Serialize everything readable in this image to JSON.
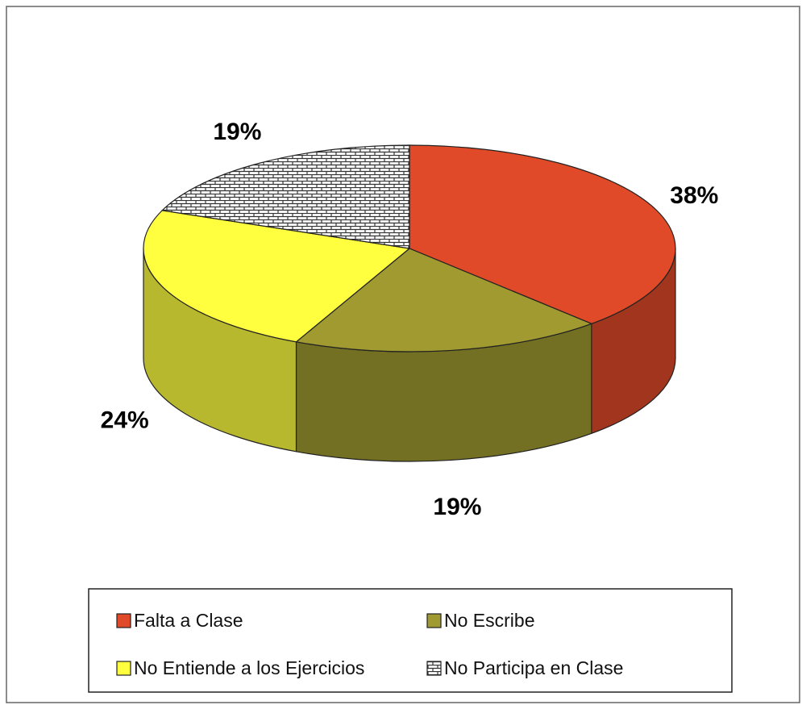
{
  "chart_data": {
    "type": "pie",
    "categories": [
      "Falta a Clase",
      "No Escribe",
      "No Entiende a los Ejercicios",
      "No Participa en Clase"
    ],
    "values": [
      38,
      19,
      24,
      19
    ],
    "value_labels": [
      "38%",
      "19%",
      "24%",
      "19%"
    ],
    "colors": [
      "#e04a28",
      "#a09a30",
      "#ffff40",
      "#ffffff"
    ],
    "hatch": [
      false,
      false,
      false,
      true
    ]
  }
}
